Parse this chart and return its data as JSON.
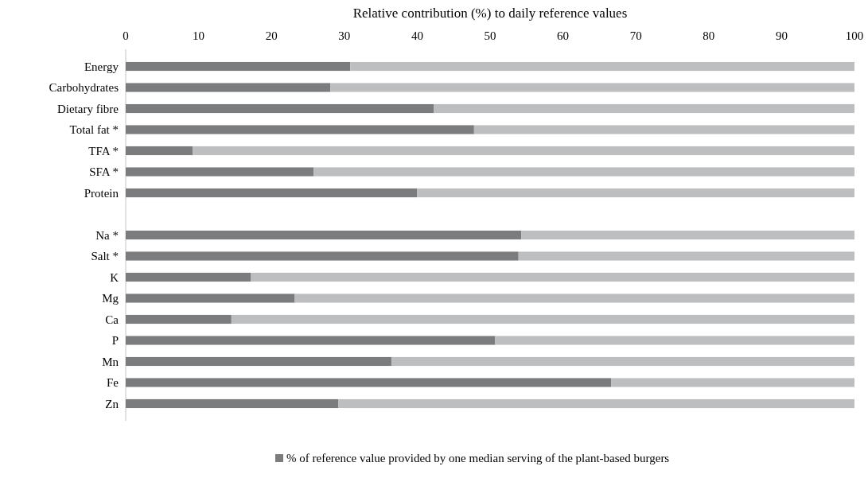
{
  "chart_data": {
    "type": "bar",
    "orientation": "horizontal",
    "stacked": true,
    "xlabel": "Relative contribution (%) to daily reference values",
    "categories": [
      "Energy",
      "Carbohydrates",
      "Dietary fibre",
      "Total fat *",
      "TFA *",
      "SFA *",
      "Protein",
      null,
      "Na *",
      "Salt *",
      "K",
      "Mg",
      "Ca",
      "P",
      "Mn",
      "Fe",
      "Zn"
    ],
    "series": [
      {
        "name": "% of reference value provided by one median serving of the plant-based burgers",
        "color": "#7b7c7e",
        "values": [
          30.8,
          28.1,
          42.3,
          47.8,
          9.2,
          25.8,
          40.0,
          null,
          54.3,
          53.9,
          17.2,
          23.2,
          14.5,
          50.7,
          36.5,
          66.6,
          29.2
        ]
      },
      {
        "color": "#bdbec0",
        "values": [
          69.2,
          71.9,
          57.7,
          52.2,
          90.8,
          74.2,
          60.0,
          null,
          45.7,
          46.1,
          82.8,
          76.8,
          85.5,
          49.3,
          63.5,
          33.4,
          70.8
        ]
      }
    ],
    "xlim": [
      0,
      100
    ],
    "xticks": [
      0,
      10,
      20,
      30,
      40,
      50,
      60,
      70,
      80,
      90,
      100
    ],
    "legend": "bottom"
  }
}
